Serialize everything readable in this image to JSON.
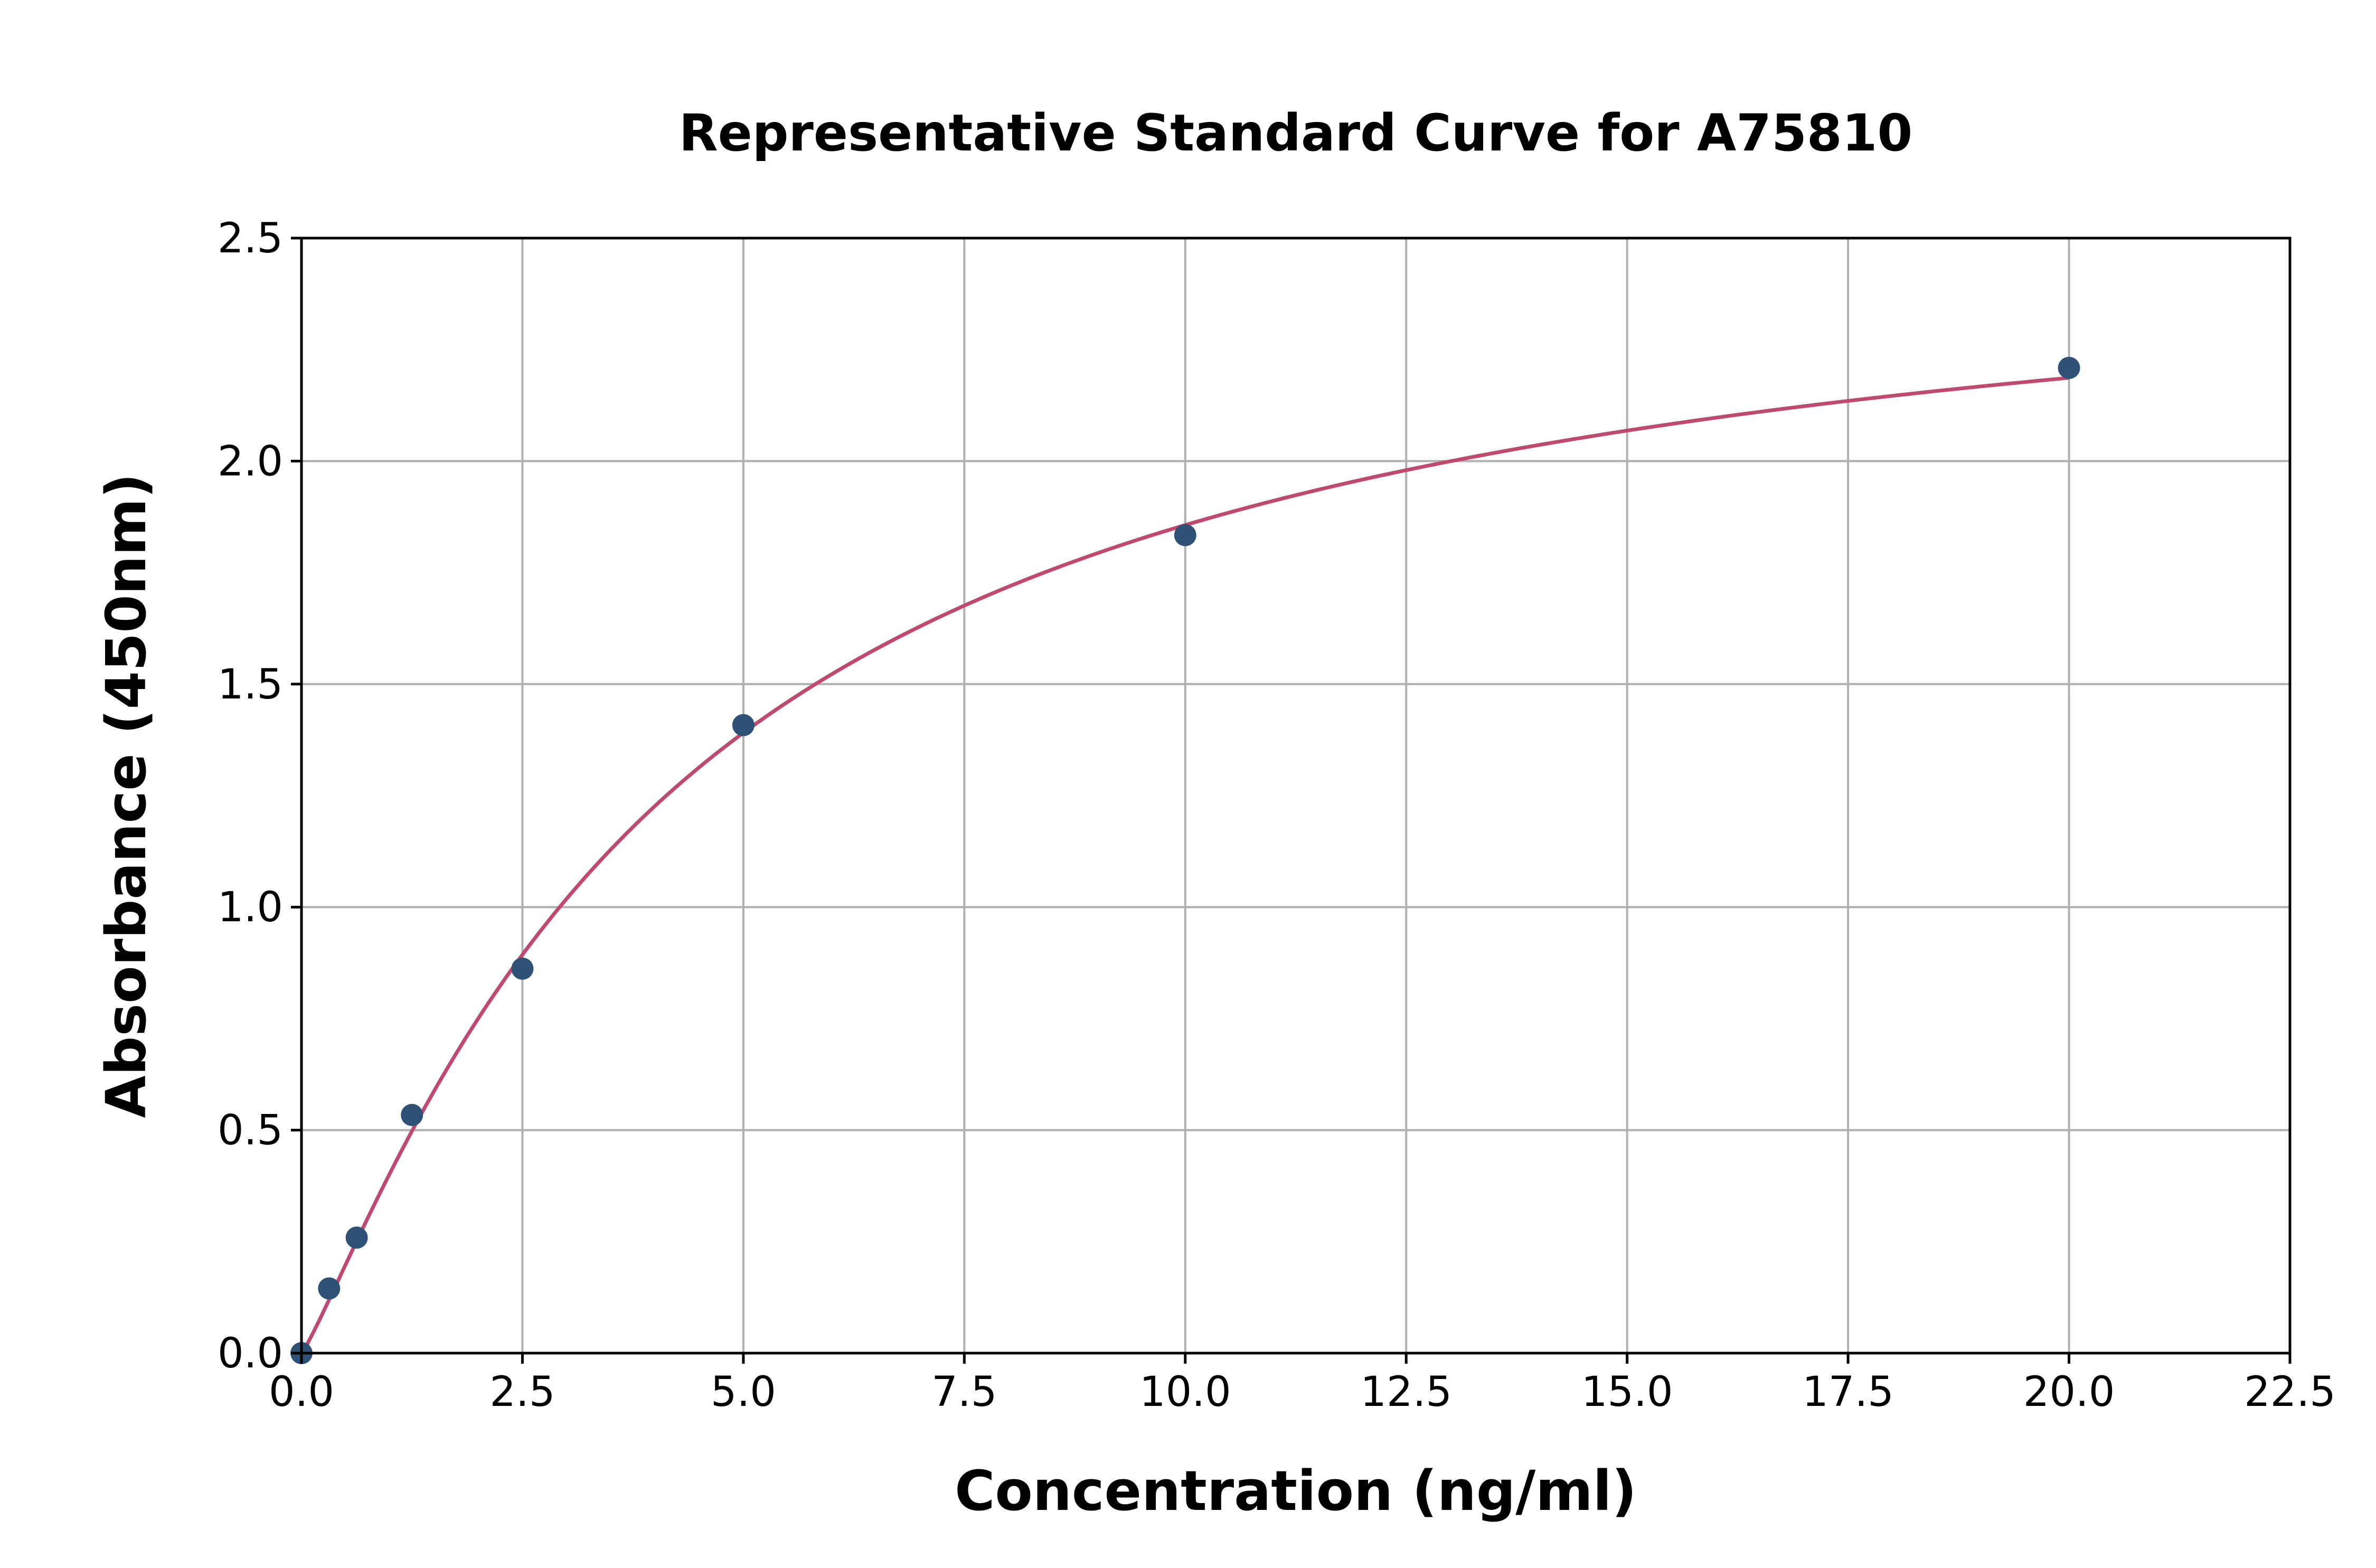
{
  "chart_data": {
    "type": "scatter",
    "title": "Representative Standard Curve for A75810",
    "xlabel": "Concentration (ng/ml)",
    "ylabel": "Absorbance (450nm)",
    "xlim": [
      0,
      22.5
    ],
    "ylim": [
      0,
      2.5
    ],
    "xticks": [
      "0.0",
      "2.5",
      "5.0",
      "7.5",
      "10.0",
      "12.5",
      "15.0",
      "17.5",
      "20.0",
      "22.5"
    ],
    "yticks": [
      "0.0",
      "0.5",
      "1.0",
      "1.5",
      "2.0",
      "2.5"
    ],
    "grid": true,
    "points": {
      "x": [
        0,
        0.3125,
        0.625,
        1.25,
        2.5,
        5,
        10,
        20
      ],
      "y": [
        0.0,
        0.145,
        0.259,
        0.534,
        0.862,
        1.408,
        1.834,
        2.209
      ]
    },
    "fit_curve": {
      "model": "4PL",
      "a": 0,
      "b": 1.15,
      "c": 4.3,
      "d": 2.56,
      "x_range": [
        0,
        20
      ]
    },
    "colors": {
      "points": "#2e5175",
      "curve": "#c04a6e",
      "grid": "#b0b0b0"
    }
  }
}
